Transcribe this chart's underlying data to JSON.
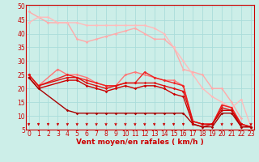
{
  "xlabel": "Vent moyen/en rafales ( km/h )",
  "bg_color": "#cceee8",
  "grid_color": "#aaddda",
  "x_max": 23,
  "y_min": 5,
  "y_max": 50,
  "y_ticks": [
    5,
    10,
    15,
    20,
    25,
    30,
    35,
    40,
    45,
    50
  ],
  "lines": [
    {
      "color": "#ffaaaa",
      "lw": 1.0,
      "marker": "D",
      "ms": 1.8,
      "x": [
        0,
        1,
        2,
        3,
        4,
        5,
        6,
        7,
        8,
        9,
        10,
        11,
        12,
        13,
        14,
        15,
        16,
        17,
        18,
        19,
        20,
        21,
        22
      ],
      "y": [
        48,
        46,
        44,
        44,
        44,
        38,
        37,
        38,
        39,
        40,
        41,
        42,
        40,
        38,
        38,
        35,
        27,
        26,
        25,
        20,
        20,
        15,
        9
      ]
    },
    {
      "color": "#ffbbbb",
      "lw": 1.0,
      "marker": "D",
      "ms": 1.8,
      "x": [
        0,
        1,
        2,
        3,
        4,
        5,
        6,
        7,
        8,
        9,
        10,
        11,
        12,
        13,
        14,
        15,
        16,
        17,
        18,
        19,
        20,
        21,
        22,
        23
      ],
      "y": [
        44,
        46,
        46,
        44,
        44,
        44,
        43,
        43,
        43,
        43,
        43,
        43,
        43,
        42,
        40,
        35,
        30,
        25,
        20,
        17,
        15,
        13,
        16,
        6
      ]
    },
    {
      "color": "#ff7777",
      "lw": 1.0,
      "marker": "D",
      "ms": 1.8,
      "x": [
        0,
        1,
        3,
        4,
        5,
        6,
        7,
        8,
        9,
        10,
        11,
        12,
        13,
        14,
        15,
        16,
        17,
        18,
        19,
        20,
        21,
        22,
        23
      ],
      "y": [
        25,
        21,
        27,
        25,
        25,
        24,
        22,
        21,
        21,
        25,
        26,
        25,
        24,
        23,
        23,
        21,
        8,
        7,
        7,
        14,
        13,
        7,
        6
      ]
    },
    {
      "color": "#ee2222",
      "lw": 1.0,
      "marker": "D",
      "ms": 1.8,
      "x": [
        0,
        1,
        4,
        5,
        6,
        7,
        8,
        9,
        10,
        11,
        12,
        13,
        14,
        15,
        16,
        17,
        18,
        19,
        20,
        21,
        22,
        23
      ],
      "y": [
        25,
        21,
        25,
        24,
        23,
        22,
        21,
        21,
        22,
        22,
        26,
        24,
        23,
        22,
        21,
        8,
        7,
        7,
        14,
        13,
        7,
        6
      ]
    },
    {
      "color": "#dd1111",
      "lw": 1.0,
      "marker": "D",
      "ms": 1.8,
      "x": [
        0,
        1,
        4,
        5,
        6,
        7,
        8,
        9,
        10,
        11,
        12,
        13,
        14,
        15,
        16,
        17,
        18,
        19,
        20,
        21,
        22,
        23
      ],
      "y": [
        25,
        21,
        24,
        24,
        22,
        21,
        20,
        21,
        22,
        22,
        22,
        22,
        21,
        20,
        19,
        8,
        7,
        7,
        13,
        12,
        7,
        6
      ]
    },
    {
      "color": "#cc0000",
      "lw": 1.0,
      "marker": "D",
      "ms": 1.8,
      "x": [
        0,
        1,
        4,
        5,
        6,
        7,
        8,
        9,
        10,
        11,
        12,
        13,
        14,
        15,
        16,
        17,
        18,
        19,
        20,
        21,
        22,
        23
      ],
      "y": [
        24,
        20,
        23,
        23,
        21,
        20,
        19,
        20,
        21,
        20,
        21,
        21,
        20,
        18,
        17,
        7,
        6,
        7,
        12,
        12,
        6,
        6
      ]
    },
    {
      "color": "#aa0000",
      "lw": 1.0,
      "marker": "D",
      "ms": 1.8,
      "x": [
        0,
        1,
        4,
        5,
        6,
        7,
        8,
        9,
        10,
        11,
        12,
        13,
        14,
        15,
        16,
        17,
        18,
        19,
        20,
        21,
        22,
        23
      ],
      "y": [
        24,
        20,
        12,
        11,
        11,
        11,
        11,
        11,
        11,
        11,
        11,
        11,
        11,
        11,
        11,
        7,
        6,
        6,
        11,
        11,
        6,
        6
      ]
    }
  ],
  "tick_arrow_color": "#cc0000",
  "axis_color": "#cc0000",
  "tick_label_color": "#cc0000",
  "xlabel_color": "#cc0000",
  "xlabel_fontsize": 6.5,
  "tick_fontsize": 5.5
}
